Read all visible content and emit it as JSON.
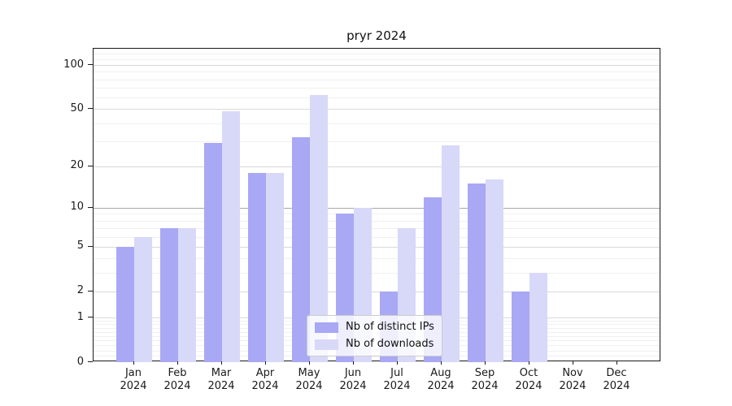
{
  "chart_data": {
    "type": "bar",
    "title": "pryr 2024",
    "categories": [
      "Jan 2024",
      "Feb 2024",
      "Mar 2024",
      "Apr 2024",
      "May 2024",
      "Jun 2024",
      "Jul 2024",
      "Aug 2024",
      "Sep 2024",
      "Oct 2024",
      "Nov 2024",
      "Dec 2024"
    ],
    "x_tick_months": [
      "Jan",
      "Feb",
      "Mar",
      "Apr",
      "May",
      "Jun",
      "Jul",
      "Aug",
      "Sep",
      "Oct",
      "Nov",
      "Dec"
    ],
    "x_tick_year": "2024",
    "series": [
      {
        "name": "Nb of distinct IPs",
        "color": "#a8a8f4",
        "values": [
          5,
          7,
          29,
          18,
          32,
          9,
          2,
          12,
          15,
          2,
          0,
          0
        ]
      },
      {
        "name": "Nb of downloads",
        "color": "#d8d8f9",
        "values": [
          6,
          7,
          48,
          18,
          62,
          10,
          7,
          28,
          16,
          3,
          0,
          0
        ]
      }
    ],
    "xlabel": "",
    "ylabel": "",
    "yscale": "log1p (y position proportional to log10(value+1))",
    "yticks": [
      0,
      1,
      2,
      5,
      10,
      20,
      50,
      100
    ],
    "minor_yticks": [
      0.1,
      0.2,
      0.3,
      0.4,
      0.5,
      0.6,
      0.7,
      0.8,
      0.9,
      3,
      4,
      6,
      7,
      8,
      9,
      30,
      40,
      60,
      70,
      80,
      90,
      110,
      120
    ],
    "ylim": [
      0,
      129
    ],
    "grid": "on",
    "legend": {
      "position": "inside-lower-center",
      "entries": [
        "Nb of distinct IPs",
        "Nb of downloads"
      ]
    }
  },
  "colors": {
    "major_gridline": "#d9d9d9",
    "emphasized_gridline_at_10": "#a9a9a9",
    "minor_gridline": "#f0f0f0",
    "axis": "#1a1a1a"
  }
}
